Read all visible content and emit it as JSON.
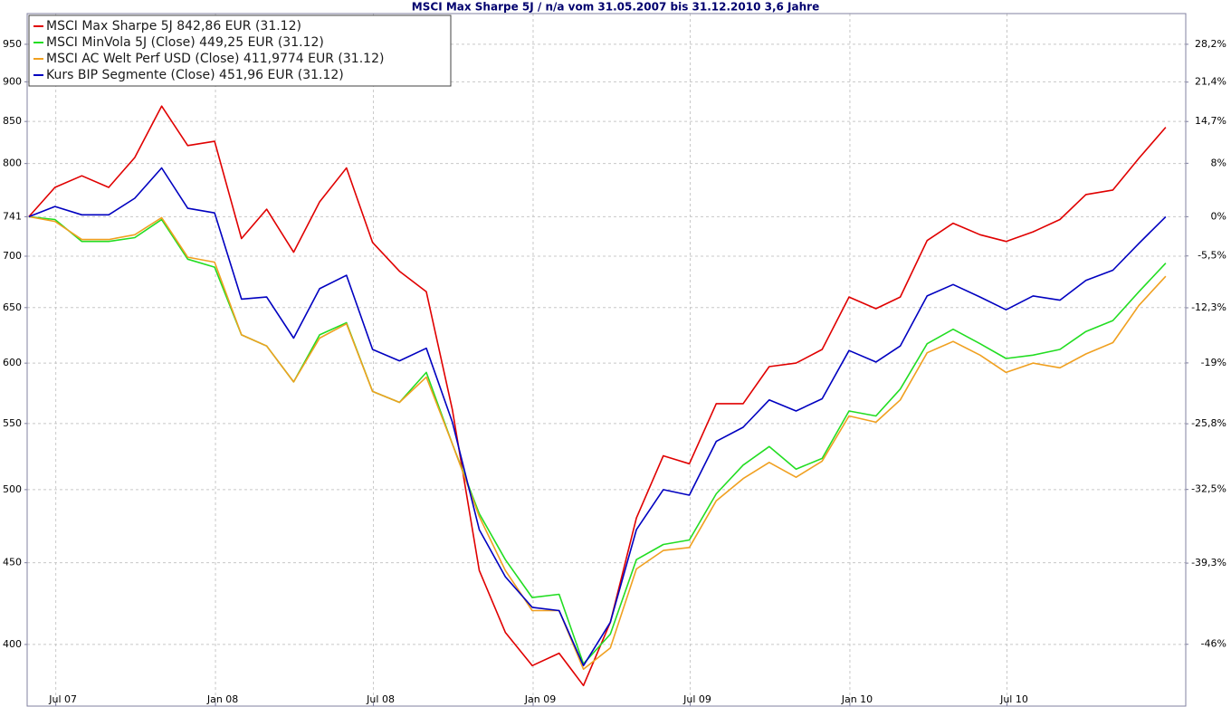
{
  "chart_data": {
    "type": "line",
    "title": "MSCI Max Sharpe 5J / n/a vom 31.05.2007 bis 31.12.2010 3,6 Jahre",
    "log_scale": true,
    "grid": true,
    "legend": "upper-left",
    "x": [
      "2007-05-31",
      "2007-06-30",
      "2007-07-31",
      "2007-08-31",
      "2007-09-30",
      "2007-10-31",
      "2007-11-30",
      "2007-12-31",
      "2008-01-31",
      "2008-02-29",
      "2008-03-31",
      "2008-04-30",
      "2008-05-31",
      "2008-06-30",
      "2008-07-31",
      "2008-08-31",
      "2008-09-30",
      "2008-10-31",
      "2008-11-30",
      "2008-12-31",
      "2009-01-31",
      "2009-02-28",
      "2009-03-31",
      "2009-04-30",
      "2009-05-31",
      "2009-06-30",
      "2009-07-31",
      "2009-08-31",
      "2009-09-30",
      "2009-10-31",
      "2009-11-30",
      "2009-12-31",
      "2010-01-31",
      "2010-02-28",
      "2010-03-31",
      "2010-04-30",
      "2010-05-31",
      "2010-06-30",
      "2010-07-31",
      "2010-08-31",
      "2010-09-30",
      "2010-10-31",
      "2010-11-30",
      "2010-12-31"
    ],
    "xlim": [
      "2007-05-29",
      "2011-01-23"
    ],
    "xticks": [
      {
        "value": "2007-07-01",
        "label": "Jul 07"
      },
      {
        "value": "2008-01-01",
        "label": "Jan 08"
      },
      {
        "value": "2008-07-01",
        "label": "Jul 08"
      },
      {
        "value": "2009-01-01",
        "label": "Jan 09"
      },
      {
        "value": "2009-07-01",
        "label": "Jul 09"
      },
      {
        "value": "2010-01-01",
        "label": "Jan 10"
      },
      {
        "value": "2010-07-01",
        "label": "Jul 10"
      }
    ],
    "ylim": [
      366,
      993
    ],
    "yticks": [
      400,
      450,
      500,
      550,
      600,
      650,
      700,
      741,
      800,
      850,
      900,
      950
    ],
    "y2lim": [
      -50.6,
      34.0
    ],
    "y2ticks": [
      {
        "value": -46,
        "label": "-46%"
      },
      {
        "value": -39.3,
        "label": "-39,3%"
      },
      {
        "value": -32.5,
        "label": "-32,5%"
      },
      {
        "value": -25.8,
        "label": "-25,8%"
      },
      {
        "value": -19,
        "label": "-19%"
      },
      {
        "value": -12.3,
        "label": "-12,3%"
      },
      {
        "value": -5.5,
        "label": "-5,5%"
      },
      {
        "value": 0,
        "label": "0%"
      },
      {
        "value": 8,
        "label": "8%"
      },
      {
        "value": 14.7,
        "label": "14,7%"
      },
      {
        "value": 21.4,
        "label": "21,4%"
      },
      {
        "value": 28.2,
        "label": "28,2%"
      }
    ],
    "series": [
      {
        "name": "MSCI Max Sharpe 5J 842,86 EUR (31.12)",
        "color": "#e00000",
        "values": [
          741,
          773,
          786,
          773,
          807,
          869,
          821,
          826,
          718,
          749,
          704,
          757,
          795,
          714,
          685,
          665,
          561,
          445,
          407,
          388,
          395,
          377,
          413,
          480,
          525,
          519,
          566,
          566,
          597,
          600,
          612,
          660,
          649,
          660,
          716,
          734,
          722,
          715,
          725,
          738,
          765,
          770,
          806,
          842.86
        ]
      },
      {
        "name": "MSCI MinVola 5J (Close) 449,25 EUR (31.12)",
        "color": "#22dd22",
        "values": [
          741,
          738,
          715,
          715,
          719,
          738,
          697,
          689,
          625,
          615,
          584,
          625,
          636,
          576,
          567,
          592,
          534,
          483,
          452,
          428,
          430,
          389,
          406,
          452,
          462,
          465,
          497,
          518,
          532,
          515,
          523,
          560,
          556,
          578,
          617,
          630,
          617,
          604,
          607,
          612,
          628,
          638,
          665,
          693
        ]
      },
      {
        "name": "MSCI AC Welt Perf USD (Close) 411,9774 EUR (31.12)",
        "color": "#f0a020",
        "values": [
          741,
          736,
          717,
          717,
          722,
          740,
          699,
          694,
          625,
          615,
          584,
          622,
          635,
          576,
          567,
          588,
          534,
          481,
          445,
          420,
          420,
          386,
          398,
          446,
          458,
          460,
          492,
          508,
          520,
          509,
          521,
          556,
          551,
          569,
          609,
          619,
          607,
          592,
          600,
          596,
          608,
          618,
          652,
          680
        ]
      },
      {
        "name": "Kurs BIP Segmente (Close) 451,96 EUR (31.12)",
        "color": "#0000c0",
        "values": [
          741,
          752,
          743,
          743,
          761,
          795,
          750,
          745,
          658,
          660,
          622,
          668,
          681,
          612,
          602,
          613,
          551,
          472,
          441,
          422,
          420,
          388,
          413,
          472,
          500,
          496,
          536,
          547,
          569,
          560,
          570,
          611,
          601,
          615,
          661,
          672,
          660,
          648,
          661,
          657,
          676,
          686,
          713,
          741
        ]
      }
    ]
  }
}
